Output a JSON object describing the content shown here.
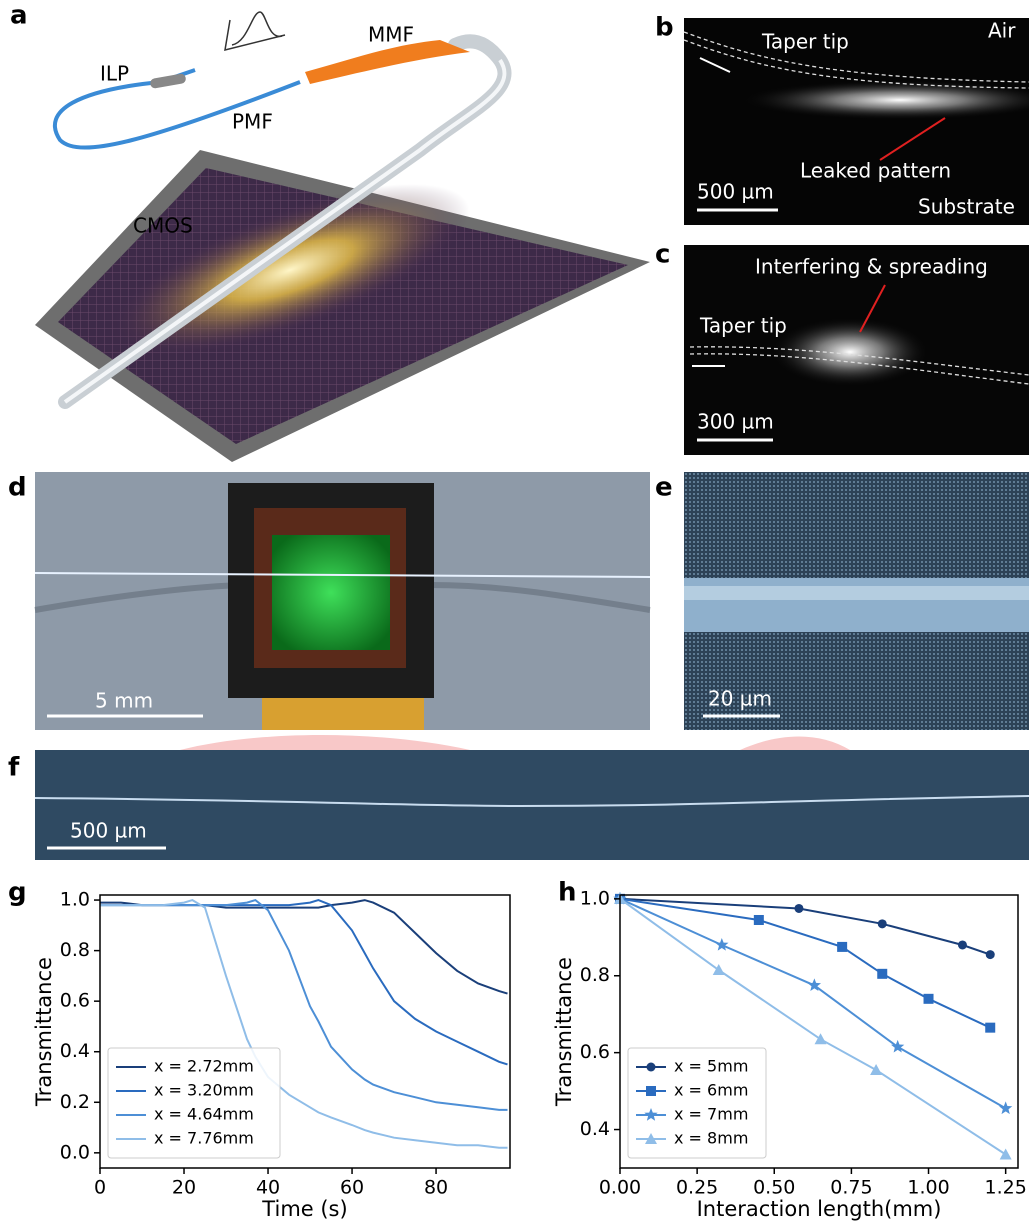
{
  "panels": [
    {
      "label": "a",
      "texts": [
        "ILP",
        "PMF",
        "MMF",
        "CMOS"
      ]
    },
    {
      "label": "b",
      "texts": [
        "Taper tip",
        "Air",
        "Leaked pattern",
        "500 µm",
        "Substrate"
      ]
    },
    {
      "label": "c",
      "texts": [
        "Interfering & spreading",
        "Taper tip",
        "300 µm"
      ]
    },
    {
      "label": "d",
      "texts": [
        "5 mm"
      ]
    },
    {
      "label": "e",
      "texts": [
        "20 µm"
      ]
    },
    {
      "label": "f",
      "texts": [
        "500 µm"
      ]
    }
  ],
  "chart_data": [
    {
      "type": "line",
      "panel_label": "g",
      "ylabel": "Transmittance",
      "xlabel": "Time (s)",
      "x": [
        0,
        5,
        10,
        15,
        20,
        22,
        25,
        30,
        35,
        37,
        40,
        45,
        50,
        52,
        55,
        60,
        63,
        65,
        70,
        75,
        80,
        85,
        90,
        95,
        97
      ],
      "series": [
        {
          "name": "x = 2.72mm",
          "color": "#1a3f7a",
          "values": [
            0.99,
            0.99,
            0.98,
            0.98,
            0.98,
            0.98,
            0.98,
            0.97,
            0.97,
            0.97,
            0.97,
            0.97,
            0.97,
            0.97,
            0.98,
            0.99,
            1.0,
            0.99,
            0.95,
            0.87,
            0.79,
            0.72,
            0.67,
            0.64,
            0.63
          ]
        },
        {
          "name": "x = 3.20mm",
          "color": "#2a6bbf",
          "values": [
            0.98,
            0.98,
            0.98,
            0.98,
            0.98,
            0.98,
            0.98,
            0.98,
            0.98,
            0.98,
            0.98,
            0.98,
            0.99,
            1.0,
            0.98,
            0.88,
            0.79,
            0.73,
            0.6,
            0.53,
            0.48,
            0.44,
            0.4,
            0.36,
            0.35
          ]
        },
        {
          "name": "x = 4.64mm",
          "color": "#4d8fd6",
          "values": [
            0.98,
            0.98,
            0.98,
            0.98,
            0.98,
            0.98,
            0.98,
            0.98,
            0.99,
            1.0,
            0.96,
            0.8,
            0.58,
            0.52,
            0.42,
            0.33,
            0.29,
            0.27,
            0.24,
            0.22,
            0.2,
            0.19,
            0.18,
            0.17,
            0.17
          ]
        },
        {
          "name": "x = 7.76mm",
          "color": "#8fbde8",
          "values": [
            0.98,
            0.98,
            0.98,
            0.98,
            0.99,
            1.0,
            0.97,
            0.7,
            0.45,
            0.38,
            0.3,
            0.23,
            0.18,
            0.16,
            0.14,
            0.11,
            0.09,
            0.08,
            0.06,
            0.05,
            0.04,
            0.03,
            0.03,
            0.02,
            0.02
          ]
        }
      ],
      "xlim": [
        0,
        97.6
      ],
      "ylim": [
        -0.06,
        1.02
      ],
      "xticks": [
        0,
        20,
        40,
        60,
        80
      ],
      "yticks": [
        {
          "value": 0,
          "label": "0.0"
        },
        0.2,
        0.4,
        0.6,
        0.8,
        {
          "value": 1,
          "label": "1.0"
        }
      ],
      "legend": "lower left"
    },
    {
      "type": "line",
      "panel_label": "h",
      "ylabel": "Transmittance",
      "xlabel": "Interaction length(mm)",
      "series": [
        {
          "name": "x = 5mm",
          "color": "#1a3f7a",
          "marker": "circle",
          "x": [
            0,
            0.58,
            0.85,
            1.11,
            1.2
          ],
          "values": [
            1.0,
            0.975,
            0.935,
            0.88,
            0.855
          ]
        },
        {
          "name": "x = 6mm",
          "color": "#2a6bbf",
          "marker": "square",
          "x": [
            0,
            0.45,
            0.72,
            0.85,
            1.0,
            1.2
          ],
          "values": [
            1.0,
            0.945,
            0.875,
            0.805,
            0.74,
            0.665
          ]
        },
        {
          "name": "x = 7mm",
          "color": "#4d8fd6",
          "marker": "star",
          "x": [
            0,
            0.33,
            0.63,
            0.9,
            1.25
          ],
          "values": [
            1.0,
            0.88,
            0.775,
            0.615,
            0.455
          ]
        },
        {
          "name": "x = 8mm",
          "color": "#8fbde8",
          "marker": "triangle",
          "x": [
            0,
            0.32,
            0.65,
            0.83,
            1.25
          ],
          "values": [
            1.0,
            0.815,
            0.635,
            0.555,
            0.335
          ]
        }
      ],
      "xlim": [
        0,
        1.29
      ],
      "ylim": [
        0.3,
        1.01
      ],
      "xticks": [
        {
          "value": 0,
          "label": "0.00"
        },
        0.25,
        {
          "value": 0.5,
          "label": "0.50"
        },
        0.75,
        {
          "value": 1,
          "label": "1.00"
        },
        1.25
      ],
      "yticks": [
        0.4,
        0.6,
        0.8,
        {
          "value": 1,
          "label": "1.0"
        }
      ],
      "legend": "lower left"
    }
  ]
}
